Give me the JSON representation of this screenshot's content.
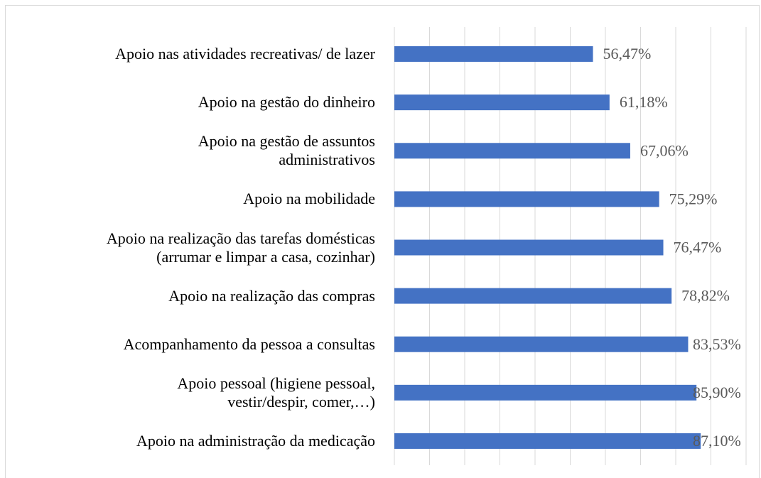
{
  "chart_data": {
    "type": "bar",
    "orientation": "horizontal",
    "categories": [
      "Apoio nas atividades recreativas/ de lazer",
      "Apoio na gestão do dinheiro",
      "Apoio na gestão de assuntos\nadministrativos",
      "Apoio na mobilidade",
      "Apoio na realização das tarefas domésticas\n(arrumar e limpar a casa, cozinhar)",
      "Apoio na realização das compras",
      "Acompanhamento da pessoa a consultas",
      "Apoio pessoal (higiene pessoal,\nvestir/despir, comer,…)",
      "Apoio na administração da medicação"
    ],
    "values": [
      56.47,
      61.18,
      67.06,
      75.29,
      76.47,
      78.82,
      83.53,
      85.9,
      87.1
    ],
    "value_labels": [
      "56,47%",
      "61,18%",
      "67,06%",
      "75,29%",
      "76,47%",
      "78,82%",
      "83,53%",
      "85,90%",
      "87,10%"
    ],
    "color": "#4472c4",
    "xlim": [
      0,
      100
    ],
    "xticks": [
      0,
      10,
      20,
      30,
      40,
      50,
      60,
      70,
      80,
      90,
      100
    ],
    "grid": true
  }
}
